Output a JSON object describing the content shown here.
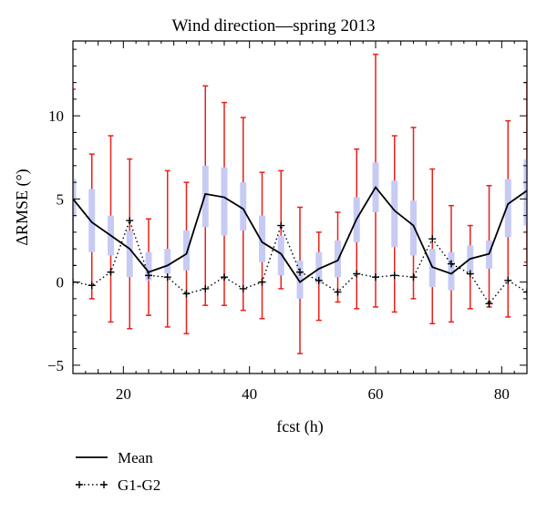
{
  "chart_data": {
    "type": "line",
    "title": "Wind direction—spring 2013",
    "xlabel": "fcst (h)",
    "ylabel": "ΔRMSE (°)",
    "xlim": [
      12,
      84
    ],
    "ylim": [
      -5.5,
      14.5
    ],
    "xticks": [
      20,
      40,
      60,
      80
    ],
    "yticks": [
      -5,
      0,
      5,
      10
    ],
    "x": [
      12,
      15,
      18,
      21,
      24,
      27,
      30,
      33,
      36,
      39,
      42,
      45,
      48,
      51,
      54,
      57,
      60,
      63,
      66,
      69,
      72,
      75,
      78,
      81,
      84
    ],
    "series": [
      {
        "name": "Mean",
        "style": "solid",
        "color": "#000000",
        "values": [
          5.0,
          3.6,
          2.8,
          2.0,
          0.6,
          1.0,
          1.7,
          5.3,
          5.1,
          4.4,
          2.4,
          1.7,
          0.0,
          0.8,
          1.3,
          3.8,
          5.7,
          4.3,
          3.4,
          0.9,
          0.5,
          1.4,
          1.7,
          4.7,
          5.5
        ]
      },
      {
        "name": "G1-G2",
        "style": "dotted",
        "marker": "+",
        "color": "#000000",
        "values": [
          0.0,
          -0.2,
          0.6,
          3.7,
          0.4,
          0.3,
          -0.7,
          -0.4,
          0.3,
          -0.4,
          0.0,
          3.4,
          0.6,
          0.1,
          -0.6,
          0.5,
          0.3,
          0.4,
          0.3,
          2.6,
          1.1,
          0.5,
          -1.3,
          0.1,
          -0.6
        ]
      }
    ],
    "boxes": {
      "color": "#c7cbf4",
      "q1": [
        3.9,
        1.8,
        1.6,
        0.3,
        0.1,
        0.5,
        0.7,
        3.3,
        2.8,
        3.1,
        1.2,
        0.4,
        -1.0,
        -0.1,
        0.3,
        2.4,
        4.2,
        2.1,
        1.6,
        -0.3,
        -0.5,
        0.6,
        0.8,
        2.7,
        3.4
      ],
      "q3": [
        6.2,
        5.6,
        4.0,
        3.1,
        1.8,
        2.0,
        3.1,
        7.0,
        6.9,
        6.0,
        4.0,
        2.8,
        1.3,
        1.8,
        2.5,
        5.1,
        7.2,
        6.1,
        4.9,
        2.0,
        1.8,
        2.2,
        2.5,
        6.2,
        7.4
      ]
    },
    "whiskers": {
      "color": "#e8211b",
      "low": [
        1.0,
        -1.0,
        -2.4,
        -2.8,
        -2.0,
        -2.7,
        -3.1,
        -1.4,
        -1.4,
        -1.7,
        -2.2,
        -0.4,
        -4.3,
        -2.3,
        -1.2,
        -1.6,
        -1.5,
        -1.8,
        -1.0,
        -2.5,
        -2.4,
        -1.6,
        -1.5,
        -2.1,
        1.2
      ],
      "high": [
        11.6,
        7.7,
        8.8,
        7.4,
        3.8,
        6.7,
        6.0,
        11.8,
        10.8,
        9.9,
        6.6,
        6.7,
        4.5,
        3.0,
        4.2,
        8.0,
        13.7,
        8.8,
        9.3,
        6.8,
        4.6,
        3.4,
        5.8,
        9.7,
        12.0
      ]
    },
    "legend": {
      "placement": "below-left",
      "entries": [
        "Mean",
        "G1-G2"
      ]
    },
    "grid": false
  }
}
